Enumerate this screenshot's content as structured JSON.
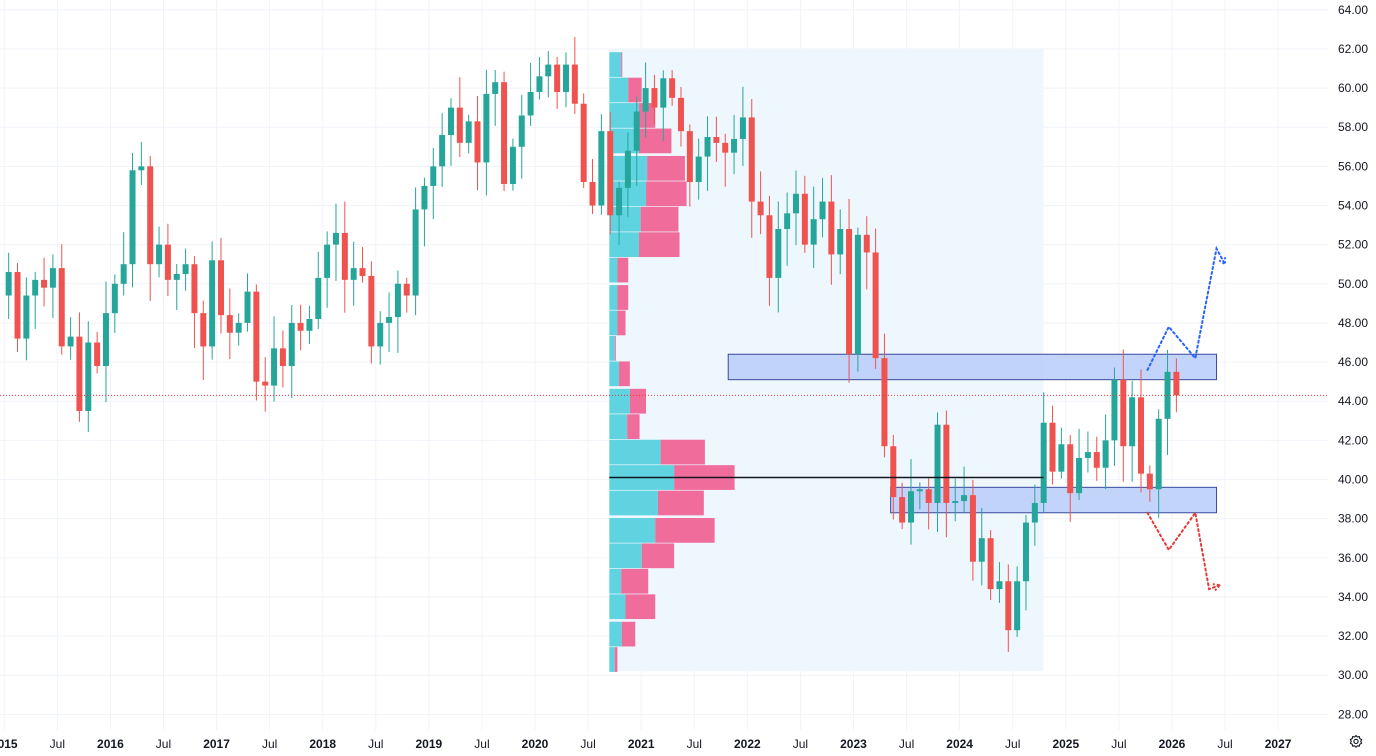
{
  "colors": {
    "up": "#26a69a",
    "down": "#ef5350",
    "up_volume": "#5fd3e0",
    "down_volume": "#f06c9b",
    "profile_bg": "#eef7fd",
    "zone_fill": "#b8cdfa",
    "zone_border": "#3a4a9a",
    "last_price_line": "#e53935",
    "poc_line": "#131722",
    "projection_up": "#2962ff",
    "projection_down": "#e53935",
    "grid": "#f0f3fa",
    "text": "#131722"
  },
  "icons": {
    "settings": "gear-icon"
  },
  "chart_data": {
    "type": "candlestick",
    "interval": "monthly",
    "price_axis": {
      "ylim": [
        27.2,
        64.5
      ],
      "ticks": [
        "28.00",
        "30.00",
        "32.00",
        "34.00",
        "36.00",
        "38.00",
        "40.00",
        "42.00",
        "44.00",
        "46.00",
        "48.00",
        "50.00",
        "52.00",
        "54.00",
        "56.00",
        "58.00",
        "60.00",
        "62.00",
        "64.00"
      ]
    },
    "time_axis": {
      "xlim": [
        2014.96,
        2027.47
      ],
      "labels": [
        {
          "t": 2015.0,
          "text": "2015",
          "year": true
        },
        {
          "t": 2015.5,
          "text": "Jul",
          "year": false
        },
        {
          "t": 2016.0,
          "text": "2016",
          "year": true
        },
        {
          "t": 2016.5,
          "text": "Jul",
          "year": false
        },
        {
          "t": 2017.0,
          "text": "2017",
          "year": true
        },
        {
          "t": 2017.5,
          "text": "Jul",
          "year": false
        },
        {
          "t": 2018.0,
          "text": "2018",
          "year": true
        },
        {
          "t": 2018.5,
          "text": "Jul",
          "year": false
        },
        {
          "t": 2019.0,
          "text": "2019",
          "year": true
        },
        {
          "t": 2019.5,
          "text": "Jul",
          "year": false
        },
        {
          "t": 2020.0,
          "text": "2020",
          "year": true
        },
        {
          "t": 2020.5,
          "text": "Jul",
          "year": false
        },
        {
          "t": 2021.0,
          "text": "2021",
          "year": true
        },
        {
          "t": 2021.5,
          "text": "Jul",
          "year": false
        },
        {
          "t": 2022.0,
          "text": "2022",
          "year": true
        },
        {
          "t": 2022.5,
          "text": "Jul",
          "year": false
        },
        {
          "t": 2023.0,
          "text": "2023",
          "year": true
        },
        {
          "t": 2023.5,
          "text": "Jul",
          "year": false
        },
        {
          "t": 2024.0,
          "text": "2024",
          "year": true
        },
        {
          "t": 2024.5,
          "text": "Jul",
          "year": false
        },
        {
          "t": 2025.0,
          "text": "2025",
          "year": true
        },
        {
          "t": 2025.5,
          "text": "Jul",
          "year": false
        },
        {
          "t": 2026.0,
          "text": "2026",
          "year": true
        },
        {
          "t": 2026.5,
          "text": "Jul",
          "year": false
        },
        {
          "t": 2027.0,
          "text": "2027",
          "year": true
        }
      ]
    },
    "start_month": "2015-01",
    "closes": [
      50.6,
      47.2,
      49.4,
      50.2,
      49.8,
      50.8,
      46.8,
      47.3,
      43.5,
      47.0,
      45.8,
      48.5,
      50.0,
      51.0,
      55.8,
      56.0,
      51.0,
      52.0,
      50.2,
      50.5,
      51.0,
      48.5,
      46.8,
      51.2,
      48.4,
      47.5,
      48.0,
      49.6,
      45.0,
      44.8,
      46.7,
      45.8,
      48.0,
      47.6,
      48.2,
      50.3,
      52.0,
      52.6,
      50.2,
      50.8,
      50.4,
      46.8,
      48.0,
      48.3,
      50.0,
      49.4,
      53.8,
      55.0,
      56.0,
      57.6,
      59.0,
      57.2,
      58.3,
      56.2,
      59.7,
      60.3,
      55.1,
      57.0,
      58.6,
      59.8,
      60.6,
      61.2,
      59.8,
      61.2,
      59.2,
      55.2,
      54.0,
      57.8,
      53.5,
      54.9,
      56.8,
      58.8,
      60.0,
      59.0,
      60.5,
      59.5,
      57.8,
      55.2,
      56.5,
      57.5,
      57.2,
      56.7,
      57.4,
      58.5,
      54.2,
      53.5,
      50.3,
      52.8,
      53.6,
      54.6,
      52.0,
      53.3,
      54.2,
      51.5,
      52.8,
      46.4,
      52.5,
      51.6,
      46.2,
      41.7,
      39.1,
      37.8,
      39.4,
      39.5,
      38.8,
      42.8,
      38.8,
      38.9,
      39.2,
      35.8,
      37.0,
      34.4,
      34.8,
      32.3,
      34.8,
      37.8,
      38.8,
      42.9,
      40.4,
      41.8,
      39.3,
      41.1,
      41.4,
      40.6,
      42.0,
      45.1,
      41.7,
      44.2,
      40.3,
      39.5,
      43.1,
      45.5,
      44.3
    ],
    "series": [
      {
        "name": "",
        "kind": "projection-up",
        "points": [
          [
            2025.77,
            45.6
          ],
          [
            2025.97,
            47.8
          ],
          [
            2026.22,
            46.2
          ],
          [
            2026.42,
            51.8
          ],
          [
            2026.5,
            51.0
          ]
        ]
      },
      {
        "name": "",
        "kind": "projection-down",
        "points": [
          [
            2025.77,
            38.3
          ],
          [
            2025.97,
            36.4
          ],
          [
            2026.22,
            38.3
          ],
          [
            2026.35,
            34.4
          ],
          [
            2026.45,
            34.6
          ]
        ]
      }
    ],
    "zones": [
      {
        "t0": 2021.82,
        "t1": 2026.42,
        "low": 45.1,
        "high": 46.4
      },
      {
        "t0": 2023.35,
        "t1": 2026.42,
        "low": 38.3,
        "high": 39.6
      }
    ],
    "last_price": 44.3,
    "volume_profile": {
      "t0": 2020.7,
      "t1": 2024.79,
      "price_low": 30.2,
      "price_high": 62.0,
      "poc_price": 40.1,
      "rows": [
        {
          "price": 30.8,
          "up": 0.1,
          "down": 0.05
        },
        {
          "price": 32.1,
          "up": 0.23,
          "down": 0.25
        },
        {
          "price": 33.5,
          "up": 0.3,
          "down": 0.55
        },
        {
          "price": 34.8,
          "up": 0.22,
          "down": 0.5
        },
        {
          "price": 36.1,
          "up": 0.6,
          "down": 0.6
        },
        {
          "price": 37.4,
          "up": 0.85,
          "down": 1.1
        },
        {
          "price": 38.8,
          "up": 0.9,
          "down": 0.85
        },
        {
          "price": 40.1,
          "up": 1.2,
          "down": 1.12
        },
        {
          "price": 41.4,
          "up": 0.95,
          "down": 0.82
        },
        {
          "price": 42.7,
          "up": 0.33,
          "down": 0.23
        },
        {
          "price": 44.0,
          "up": 0.38,
          "down": 0.3
        },
        {
          "price": 45.4,
          "up": 0.18,
          "down": 0.2
        },
        {
          "price": 46.7,
          "up": 0.1,
          "down": 0.02
        },
        {
          "price": 48.0,
          "up": 0.15,
          "down": 0.15
        },
        {
          "price": 49.3,
          "up": 0.15,
          "down": 0.2
        },
        {
          "price": 50.7,
          "up": 0.15,
          "down": 0.2
        },
        {
          "price": 52.0,
          "up": 0.55,
          "down": 0.75
        },
        {
          "price": 53.3,
          "up": 0.58,
          "down": 0.7
        },
        {
          "price": 54.6,
          "up": 0.68,
          "down": 0.75
        },
        {
          "price": 55.9,
          "up": 0.7,
          "down": 0.7
        },
        {
          "price": 57.3,
          "up": 0.55,
          "down": 0.6
        },
        {
          "price": 58.6,
          "up": 0.55,
          "down": 0.3
        },
        {
          "price": 59.9,
          "up": 0.35,
          "down": 0.25
        },
        {
          "price": 61.2,
          "up": 0.22,
          "down": 0.02
        }
      ]
    }
  }
}
